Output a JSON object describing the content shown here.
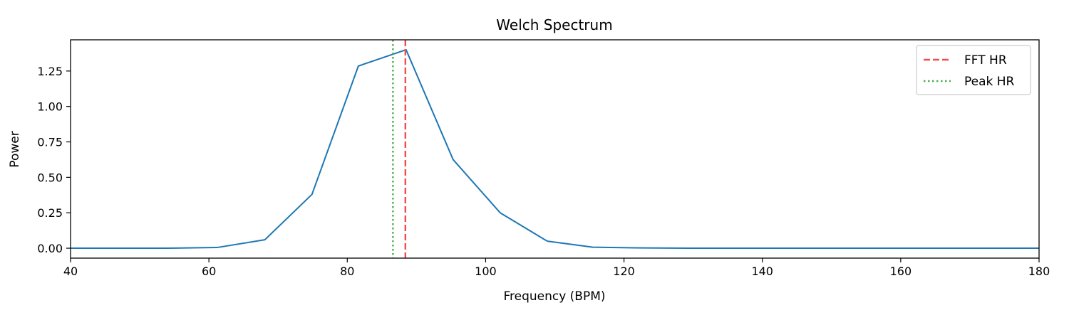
{
  "chart_data": {
    "type": "line",
    "title": "Welch Spectrum",
    "xlabel": "Frequency (BPM)",
    "ylabel": "Power",
    "xlim": [
      40,
      180
    ],
    "ylim": [
      -0.07,
      1.47
    ],
    "xticks": [
      40,
      60,
      80,
      100,
      120,
      140,
      160,
      180
    ],
    "xtick_labels": [
      "40",
      "60",
      "80",
      "100",
      "120",
      "140",
      "160",
      "180"
    ],
    "yticks": [
      0.0,
      0.25,
      0.5,
      0.75,
      1.0,
      1.25
    ],
    "ytick_labels": [
      "0.00",
      "0.25",
      "0.50",
      "0.75",
      "1.00",
      "1.25"
    ],
    "grid": false,
    "legend_position": "top-right",
    "series": [
      {
        "color": "#1f77b4",
        "x": [
          33.6,
          40.3,
          47.0,
          54.1,
          61.2,
          68.1,
          74.9,
          81.6,
          88.5,
          95.3,
          102.1,
          108.9,
          115.5,
          122.6,
          129.2,
          136.2,
          143.0,
          149.9,
          156.6,
          163.4,
          170.2,
          177.0,
          183.8
        ],
        "y": [
          0.0,
          0.0,
          0.0,
          0.0,
          0.005,
          0.06,
          0.38,
          1.285,
          1.4,
          0.625,
          0.25,
          0.05,
          0.007,
          0.002,
          0.0,
          0.0,
          0.0,
          0.0,
          0.0,
          0.0,
          0.0,
          0.0,
          0.0
        ]
      }
    ],
    "vlines": [
      {
        "name": "FFT HR",
        "x": 88.4,
        "color": "#f24d4d",
        "style": "dashed"
      },
      {
        "name": "Peak HR",
        "x": 86.6,
        "color": "#4caf50",
        "style": "dotted"
      }
    ]
  }
}
